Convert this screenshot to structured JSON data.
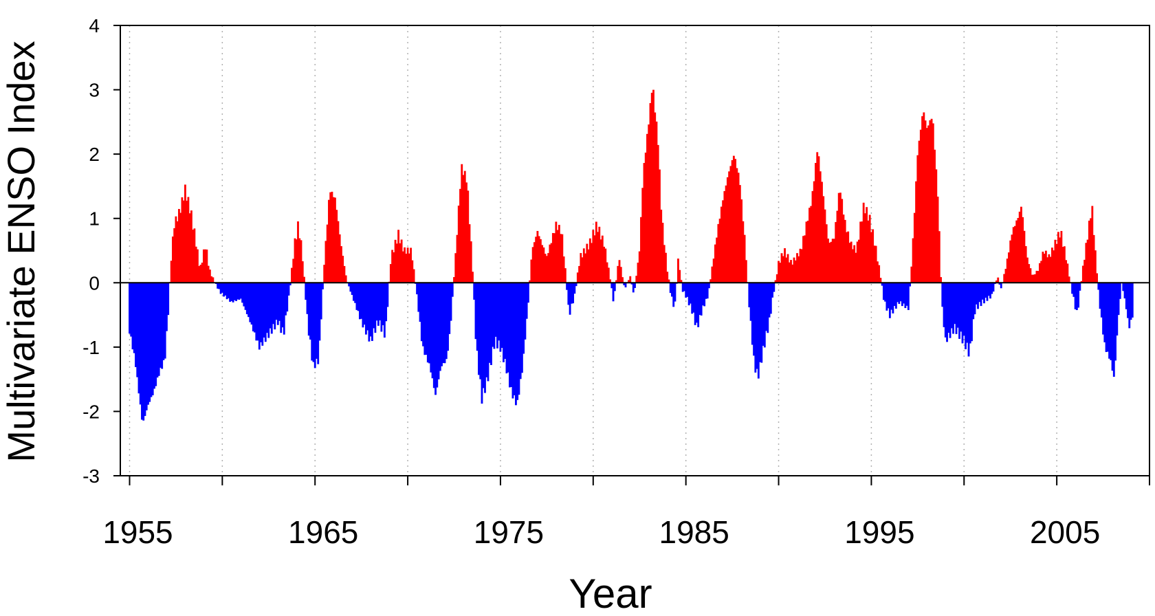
{
  "chart_data": {
    "type": "bar",
    "title": "",
    "xlabel": "Year",
    "ylabel": "Multivariate ENSO Index",
    "xlim": [
      1954.5,
      2010
    ],
    "ylim": [
      -3,
      4
    ],
    "x_ticks": [
      1955,
      1960,
      1965,
      1970,
      1975,
      1980,
      1985,
      1990,
      1995,
      2000,
      2005,
      2010
    ],
    "x_tick_labels": [
      "1955",
      "1965",
      "1975",
      "1985",
      "1995",
      "2005"
    ],
    "x_tick_label_values": [
      1955,
      1965,
      1975,
      1985,
      1995,
      2005
    ],
    "y_ticks": [
      -3,
      -2,
      -1,
      0,
      1,
      2,
      3,
      4
    ],
    "y_tick_labels": [
      "-3",
      "-2",
      "-1",
      "0",
      "1",
      "2",
      "3",
      "4"
    ],
    "grid": "vertical dotted",
    "colors": {
      "positive": "#ff0000",
      "negative": "#0000ff",
      "axis": "#000000",
      "grid": "#b0b0b0"
    },
    "series_keypoints": [
      [
        1955.0,
        -0.75
      ],
      [
        1955.3,
        -1.2
      ],
      [
        1955.5,
        -1.7
      ],
      [
        1955.7,
        -2.2
      ],
      [
        1956.0,
        -1.9
      ],
      [
        1956.3,
        -1.7
      ],
      [
        1956.6,
        -1.4
      ],
      [
        1956.9,
        -1.2
      ],
      [
        1957.1,
        -0.4
      ],
      [
        1957.2,
        0.2
      ],
      [
        1957.4,
        0.9
      ],
      [
        1957.7,
        1.1
      ],
      [
        1958.0,
        1.45
      ],
      [
        1958.3,
        1.1
      ],
      [
        1958.6,
        0.6
      ],
      [
        1958.8,
        0.2
      ],
      [
        1959.1,
        0.6
      ],
      [
        1959.3,
        0.2
      ],
      [
        1959.6,
        0.0
      ],
      [
        1959.9,
        -0.15
      ],
      [
        1960.5,
        -0.3
      ],
      [
        1961.0,
        -0.25
      ],
      [
        1961.5,
        -0.6
      ],
      [
        1962.0,
        -1.0
      ],
      [
        1962.5,
        -0.8
      ],
      [
        1963.0,
        -0.6
      ],
      [
        1963.3,
        -0.8
      ],
      [
        1963.6,
        -0.2
      ],
      [
        1963.9,
        0.6
      ],
      [
        1964.1,
        0.9
      ],
      [
        1964.3,
        0.5
      ],
      [
        1964.6,
        -0.6
      ],
      [
        1964.9,
        -1.3
      ],
      [
        1965.2,
        -1.2
      ],
      [
        1965.5,
        0.3
      ],
      [
        1965.8,
        1.45
      ],
      [
        1966.1,
        1.3
      ],
      [
        1966.4,
        0.6
      ],
      [
        1966.7,
        0.05
      ],
      [
        1967.0,
        -0.2
      ],
      [
        1967.5,
        -0.6
      ],
      [
        1968.0,
        -0.9
      ],
      [
        1968.4,
        -0.6
      ],
      [
        1968.8,
        -0.8
      ],
      [
        1969.1,
        0.4
      ],
      [
        1969.5,
        0.75
      ],
      [
        1969.8,
        0.5
      ],
      [
        1970.2,
        0.5
      ],
      [
        1970.5,
        -0.2
      ],
      [
        1970.8,
        -1.0
      ],
      [
        1971.2,
        -1.3
      ],
      [
        1971.5,
        -1.75
      ],
      [
        1971.8,
        -1.3
      ],
      [
        1972.1,
        -1.2
      ],
      [
        1972.3,
        -0.7
      ],
      [
        1972.6,
        0.5
      ],
      [
        1972.9,
        1.8
      ],
      [
        1973.2,
        1.6
      ],
      [
        1973.5,
        0.2
      ],
      [
        1973.7,
        -1.0
      ],
      [
        1974.0,
        -1.8
      ],
      [
        1974.3,
        -1.5
      ],
      [
        1974.7,
        -0.9
      ],
      [
        1975.0,
        -1.0
      ],
      [
        1975.3,
        -1.3
      ],
      [
        1975.6,
        -1.7
      ],
      [
        1975.9,
        -1.9
      ],
      [
        1976.2,
        -1.3
      ],
      [
        1976.5,
        -0.3
      ],
      [
        1976.7,
        0.5
      ],
      [
        1977.0,
        0.8
      ],
      [
        1977.5,
        0.4
      ],
      [
        1978.0,
        0.9
      ],
      [
        1978.3,
        0.8
      ],
      [
        1978.5,
        0.2
      ],
      [
        1978.7,
        -0.5
      ],
      [
        1979.0,
        -0.2
      ],
      [
        1979.3,
        0.4
      ],
      [
        1979.8,
        0.6
      ],
      [
        1980.2,
        0.9
      ],
      [
        1980.6,
        0.6
      ],
      [
        1980.9,
        0.1
      ],
      [
        1981.1,
        -0.3
      ],
      [
        1981.4,
        0.4
      ],
      [
        1981.7,
        -0.1
      ],
      [
        1982.0,
        0.1
      ],
      [
        1982.2,
        -0.2
      ],
      [
        1982.5,
        0.5
      ],
      [
        1982.7,
        1.7
      ],
      [
        1983.0,
        2.5
      ],
      [
        1983.2,
        3.1
      ],
      [
        1983.5,
        2.2
      ],
      [
        1983.7,
        1.0
      ],
      [
        1984.0,
        0.2
      ],
      [
        1984.2,
        -0.2
      ],
      [
        1984.4,
        -0.4
      ],
      [
        1984.6,
        0.4
      ],
      [
        1984.8,
        -0.1
      ],
      [
        1985.0,
        -0.2
      ],
      [
        1985.3,
        -0.4
      ],
      [
        1985.6,
        -0.7
      ],
      [
        1985.9,
        -0.4
      ],
      [
        1986.2,
        -0.2
      ],
      [
        1986.4,
        0.2
      ],
      [
        1986.7,
        0.8
      ],
      [
        1987.0,
        1.3
      ],
      [
        1987.3,
        1.7
      ],
      [
        1987.6,
        2.0
      ],
      [
        1987.9,
        1.6
      ],
      [
        1988.2,
        0.6
      ],
      [
        1988.4,
        -0.3
      ],
      [
        1988.7,
        -1.3
      ],
      [
        1988.9,
        -1.45
      ],
      [
        1989.2,
        -1.0
      ],
      [
        1989.5,
        -0.6
      ],
      [
        1989.7,
        -0.2
      ],
      [
        1990.0,
        0.3
      ],
      [
        1990.3,
        0.5
      ],
      [
        1990.7,
        0.3
      ],
      [
        1991.2,
        0.5
      ],
      [
        1991.5,
        0.9
      ],
      [
        1991.8,
        1.3
      ],
      [
        1992.1,
        2.1
      ],
      [
        1992.4,
        1.4
      ],
      [
        1992.7,
        0.6
      ],
      [
        1993.0,
        0.7
      ],
      [
        1993.3,
        1.5
      ],
      [
        1993.6,
        0.9
      ],
      [
        1993.9,
        0.6
      ],
      [
        1994.2,
        0.5
      ],
      [
        1994.6,
        1.2
      ],
      [
        1994.9,
        1.0
      ],
      [
        1995.2,
        0.6
      ],
      [
        1995.5,
        0.1
      ],
      [
        1995.7,
        -0.3
      ],
      [
        1996.0,
        -0.5
      ],
      [
        1996.5,
        -0.3
      ],
      [
        1997.0,
        -0.4
      ],
      [
        1997.2,
        0.4
      ],
      [
        1997.5,
        2.0
      ],
      [
        1997.8,
        2.7
      ],
      [
        1998.0,
        2.4
      ],
      [
        1998.3,
        2.6
      ],
      [
        1998.6,
        1.3
      ],
      [
        1998.8,
        -0.3
      ],
      [
        1999.0,
        -0.9
      ],
      [
        1999.5,
        -0.7
      ],
      [
        2000.0,
        -0.9
      ],
      [
        2000.3,
        -1.1
      ],
      [
        2000.6,
        -0.4
      ],
      [
        2001.0,
        -0.3
      ],
      [
        2001.5,
        -0.2
      ],
      [
        2001.8,
        0.1
      ],
      [
        2002.0,
        -0.1
      ],
      [
        2002.3,
        0.3
      ],
      [
        2002.6,
        0.8
      ],
      [
        2002.9,
        1.0
      ],
      [
        2003.1,
        1.2
      ],
      [
        2003.4,
        0.4
      ],
      [
        2003.7,
        0.1
      ],
      [
        2004.0,
        0.2
      ],
      [
        2004.3,
        0.5
      ],
      [
        2004.6,
        0.4
      ],
      [
        2004.9,
        0.6
      ],
      [
        2005.2,
        0.8
      ],
      [
        2005.5,
        0.4
      ],
      [
        2005.8,
        -0.1
      ],
      [
        2006.1,
        -0.5
      ],
      [
        2006.4,
        0.2
      ],
      [
        2006.7,
        0.8
      ],
      [
        2006.9,
        1.2
      ],
      [
        2007.1,
        0.4
      ],
      [
        2007.3,
        -0.3
      ],
      [
        2007.6,
        -1.0
      ],
      [
        2007.9,
        -1.2
      ],
      [
        2008.1,
        -1.5
      ],
      [
        2008.3,
        -0.6
      ],
      [
        2008.5,
        0.0
      ],
      [
        2008.7,
        -0.3
      ],
      [
        2008.9,
        -0.7
      ],
      [
        2009.1,
        -0.5
      ]
    ]
  }
}
